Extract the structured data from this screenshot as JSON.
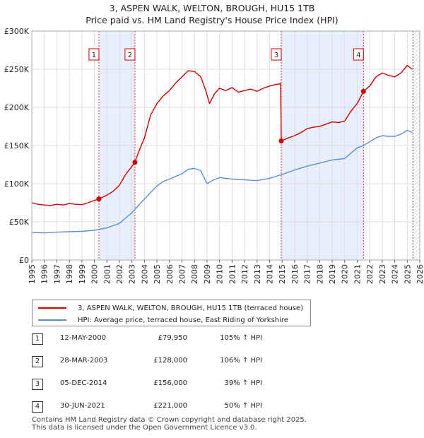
{
  "chart_data": {
    "type": "line",
    "title": "3, ASPEN WALK, WELTON, BROUGH, HU15 1TB",
    "subtitle": "Price paid vs. HM Land Registry's House Price Index (HPI)",
    "xlim": [
      1995,
      2026
    ],
    "ylim": [
      0,
      300000
    ],
    "x_ticks": [
      "1995",
      "1996",
      "1997",
      "1998",
      "1999",
      "2000",
      "2001",
      "2002",
      "2003",
      "2004",
      "2005",
      "2006",
      "2007",
      "2008",
      "2009",
      "2010",
      "2011",
      "2012",
      "2013",
      "2014",
      "2015",
      "2016",
      "2017",
      "2018",
      "2019",
      "2020",
      "2021",
      "2022",
      "2023",
      "2024",
      "2025",
      "2026"
    ],
    "y_ticks": [
      "£0",
      "£50K",
      "£100K",
      "£150K",
      "£200K",
      "£250K",
      "£300K"
    ],
    "series": [
      {
        "name": "3, ASPEN WALK, WELTON, BROUGH, HU15 1TB (terraced house)",
        "color": "#cc0000",
        "points": [
          [
            1995.0,
            75000
          ],
          [
            1995.5,
            73000
          ],
          [
            1996.0,
            72000
          ],
          [
            1996.5,
            71500
          ],
          [
            1997.0,
            73000
          ],
          [
            1997.5,
            72000
          ],
          [
            1998.0,
            74000
          ],
          [
            1998.5,
            73000
          ],
          [
            1999.0,
            72500
          ],
          [
            1999.5,
            75000
          ],
          [
            2000.0,
            78000
          ],
          [
            2000.36,
            79950
          ],
          [
            2001.0,
            85000
          ],
          [
            2001.5,
            90000
          ],
          [
            2002.0,
            98000
          ],
          [
            2002.5,
            112000
          ],
          [
            2003.24,
            128000
          ],
          [
            2003.5,
            140000
          ],
          [
            2004.0,
            160000
          ],
          [
            2004.5,
            190000
          ],
          [
            2005.0,
            205000
          ],
          [
            2005.5,
            215000
          ],
          [
            2006.0,
            222000
          ],
          [
            2006.5,
            232000
          ],
          [
            2007.0,
            240000
          ],
          [
            2007.5,
            248000
          ],
          [
            2008.0,
            247000
          ],
          [
            2008.5,
            240000
          ],
          [
            2008.9,
            222000
          ],
          [
            2009.2,
            205000
          ],
          [
            2009.6,
            218000
          ],
          [
            2010.0,
            225000
          ],
          [
            2010.5,
            222000
          ],
          [
            2011.0,
            226000
          ],
          [
            2011.5,
            220000
          ],
          [
            2012.0,
            222000
          ],
          [
            2012.5,
            224000
          ],
          [
            2013.0,
            221000
          ],
          [
            2013.5,
            225000
          ],
          [
            2014.0,
            228000
          ],
          [
            2014.5,
            230000
          ],
          [
            2014.88,
            231000
          ],
          [
            2014.93,
            156000
          ],
          [
            2015.5,
            160000
          ],
          [
            2016.0,
            163000
          ],
          [
            2016.5,
            167000
          ],
          [
            2017.0,
            172000
          ],
          [
            2017.5,
            174000
          ],
          [
            2018.0,
            175000
          ],
          [
            2018.5,
            178000
          ],
          [
            2019.0,
            181000
          ],
          [
            2019.5,
            180000
          ],
          [
            2020.0,
            182000
          ],
          [
            2020.5,
            195000
          ],
          [
            2021.0,
            205000
          ],
          [
            2021.5,
            221000
          ],
          [
            2022.0,
            228000
          ],
          [
            2022.5,
            240000
          ],
          [
            2023.0,
            245000
          ],
          [
            2023.5,
            242000
          ],
          [
            2024.0,
            240000
          ],
          [
            2024.5,
            245000
          ],
          [
            2025.0,
            255000
          ],
          [
            2025.4,
            250000
          ]
        ]
      },
      {
        "name": "HPI: Average price, terraced house, East Riding of Yorkshire",
        "color": "#5b8fd0",
        "points": [
          [
            1995.0,
            36000
          ],
          [
            1996.0,
            35500
          ],
          [
            1997.0,
            36500
          ],
          [
            1998.0,
            37000
          ],
          [
            1999.0,
            37500
          ],
          [
            2000.0,
            39000
          ],
          [
            2001.0,
            42000
          ],
          [
            2002.0,
            48000
          ],
          [
            2003.0,
            62000
          ],
          [
            2004.0,
            80000
          ],
          [
            2005.0,
            97000
          ],
          [
            2005.5,
            103000
          ],
          [
            2006.0,
            106000
          ],
          [
            2007.0,
            113000
          ],
          [
            2007.5,
            119000
          ],
          [
            2008.0,
            120000
          ],
          [
            2008.5,
            117000
          ],
          [
            2009.0,
            100000
          ],
          [
            2009.5,
            105000
          ],
          [
            2010.0,
            108000
          ],
          [
            2011.0,
            106000
          ],
          [
            2012.0,
            105000
          ],
          [
            2013.0,
            104000
          ],
          [
            2014.0,
            107000
          ],
          [
            2015.0,
            112000
          ],
          [
            2016.0,
            118000
          ],
          [
            2017.0,
            123000
          ],
          [
            2018.0,
            127000
          ],
          [
            2019.0,
            131000
          ],
          [
            2020.0,
            133000
          ],
          [
            2020.5,
            140000
          ],
          [
            2021.0,
            147000
          ],
          [
            2021.5,
            150000
          ],
          [
            2022.0,
            155000
          ],
          [
            2022.5,
            160000
          ],
          [
            2023.0,
            163000
          ],
          [
            2023.5,
            162000
          ],
          [
            2024.0,
            162000
          ],
          [
            2024.5,
            165000
          ],
          [
            2025.0,
            170000
          ],
          [
            2025.4,
            167000
          ]
        ]
      }
    ],
    "transactions": [
      {
        "label": "1",
        "x": 2000.36,
        "price": 79950
      },
      {
        "label": "2",
        "x": 2003.24,
        "price": 128000
      },
      {
        "label": "3",
        "x": 2014.93,
        "price": 156000
      },
      {
        "label": "4",
        "x": 2021.5,
        "price": 221000
      }
    ],
    "shaded_ranges": [
      [
        2000.36,
        2003.24
      ],
      [
        2014.93,
        2021.5
      ]
    ],
    "forecast_start": 2025.45
  },
  "legend": {
    "property": "3, ASPEN WALK, WELTON, BROUGH, HU15 1TB (terraced house)",
    "hpi": "HPI: Average price, terraced house, East Riding of Yorkshire"
  },
  "table": [
    {
      "num": "1",
      "date": "12-MAY-2000",
      "price": "£79,950",
      "hpi": "105% ↑ HPI"
    },
    {
      "num": "2",
      "date": "28-MAR-2003",
      "price": "£128,000",
      "hpi": "106% ↑ HPI"
    },
    {
      "num": "3",
      "date": "05-DEC-2014",
      "price": "£156,000",
      "hpi": "39% ↑ HPI"
    },
    {
      "num": "4",
      "date": "30-JUN-2021",
      "price": "£221,000",
      "hpi": "50% ↑ HPI"
    }
  ],
  "footer": {
    "line1": "Contains HM Land Registry data © Crown copyright and database right 2025.",
    "line2": "This data is licensed under the Open Government Licence v3.0."
  }
}
